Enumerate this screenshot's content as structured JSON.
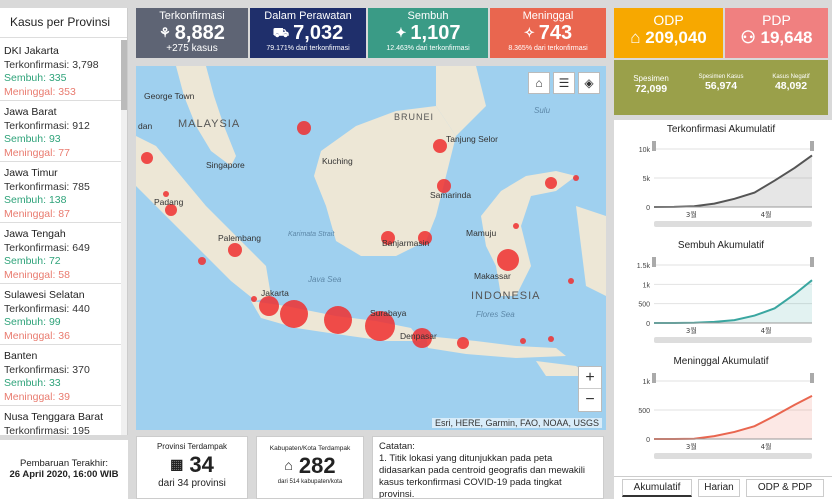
{
  "sidebar": {
    "title": "Kasus per Provinsi",
    "provinces": [
      {
        "name": "DKI Jakarta",
        "konf": "Terkonfirmasi: 3,798",
        "semb": "Sembuh: 335",
        "men": "Meninggal: 353"
      },
      {
        "name": "Jawa Barat",
        "konf": "Terkonfirmasi: 912",
        "semb": "Sembuh: 93",
        "men": "Meninggal: 77"
      },
      {
        "name": "Jawa Timur",
        "konf": "Terkonfirmasi: 785",
        "semb": "Sembuh: 138",
        "men": "Meninggal: 87"
      },
      {
        "name": "Jawa Tengah",
        "konf": "Terkonfirmasi: 649",
        "semb": "Sembuh: 72",
        "men": "Meninggal: 58"
      },
      {
        "name": "Sulawesi Selatan",
        "konf": "Terkonfirmasi: 440",
        "semb": "Sembuh: 99",
        "men": "Meninggal: 36"
      },
      {
        "name": "Banten",
        "konf": "Terkonfirmasi: 370",
        "semb": "Sembuh: 33",
        "men": "Meninggal: 39"
      },
      {
        "name": "Nusa Tenggara Barat",
        "konf": "Terkonfirmasi: 195",
        "semb": "",
        "men": ""
      }
    ]
  },
  "update": {
    "label": "Pembaruan Terakhir:",
    "date": "26 April 2020, 16:00 WIB"
  },
  "stats": {
    "konf": {
      "label": "Terkonfirmasi",
      "value": "8,882",
      "sub": "+275 kasus"
    },
    "raw": {
      "label": "Dalam Perawatan",
      "value": "7,032",
      "sub": "79.171% dari terkonfirmasi"
    },
    "semb": {
      "label": "Sembuh",
      "value": "1,107",
      "sub": "12.463% dari terkonfirmasi"
    },
    "men": {
      "label": "Meninggal",
      "value": "743",
      "sub": "8.365% dari terkonfirmasi"
    }
  },
  "odp": {
    "label": "ODP",
    "value": "209,040"
  },
  "pdp": {
    "label": "PDP",
    "value": "19,648"
  },
  "spesimen": [
    {
      "label": "Spesimen",
      "value": "72,099"
    },
    {
      "label": "Spesimen Kasus",
      "value": "56,974"
    },
    {
      "label": "Kasus Negatif",
      "value": "48,092"
    }
  ],
  "map": {
    "labels": {
      "malaysia": "MALAYSIA",
      "brunei": "BRUNEI",
      "indonesia": "INDONESIA",
      "georgetown": "George Town",
      "singapore": "Singapore",
      "padang": "Padang",
      "palembang": "Palembang",
      "jakarta": "Jakarta",
      "surabaya": "Surabaya",
      "denpasar": "Denpasar",
      "kuching": "Kuching",
      "samarinda": "Samarinda",
      "banjarmasin": "Banjarmasin",
      "mamuju": "Mamuju",
      "makassar": "Makassar",
      "tanjung": "Tanjung Selor",
      "java_sea": "Java Sea",
      "flores": "Flores Sea",
      "karimata": "Karimata Strait",
      "dan": "dan",
      "sulu": "Sulu"
    },
    "attribution": "Esri, HERE, Garmin, FAO, NOAA, USGS",
    "zoom_in": "+",
    "zoom_out": "−"
  },
  "boxes": {
    "prov": {
      "label": "Provinsi Terdampak",
      "value": "34",
      "sub": "dari 34 provinsi"
    },
    "kab": {
      "label": "Kabupaten/Kota Terdampak",
      "value": "282",
      "sub": "dari 514 kabupaten/kota"
    }
  },
  "catatan": {
    "title": "Catatan:",
    "text": "1. Titik lokasi yang ditunjukkan pada peta didasarkan pada centroid geografis dan mewakili kasus terkonfirmasi COVID-19 pada tingkat provinsi."
  },
  "chart_data": [
    {
      "type": "area",
      "title": "Terkonfirmasi Akumulatif",
      "ytick_labels": [
        "10k",
        "5k",
        "0"
      ],
      "xtick_labels": [
        "3월",
        "4월"
      ],
      "ylim": [
        0,
        10000
      ],
      "x": [
        "2020-03-02",
        "2020-03-09",
        "2020-03-16",
        "2020-03-23",
        "2020-03-30",
        "2020-04-06",
        "2020-04-13",
        "2020-04-20",
        "2020-04-26"
      ],
      "values": [
        2,
        19,
        134,
        579,
        1414,
        2491,
        4557,
        6760,
        8882
      ],
      "color": "#555555"
    },
    {
      "type": "area",
      "title": "Sembuh Akumulatif",
      "ytick_labels": [
        "1.5k",
        "1k",
        "500",
        "0"
      ],
      "xtick_labels": [
        "3월",
        "4월"
      ],
      "ylim": [
        0,
        1500
      ],
      "x": [
        "2020-03-02",
        "2020-03-09",
        "2020-03-16",
        "2020-03-23",
        "2020-03-30",
        "2020-04-06",
        "2020-04-13",
        "2020-04-20",
        "2020-04-26"
      ],
      "values": [
        0,
        0,
        8,
        30,
        75,
        192,
        380,
        747,
        1107
      ],
      "color": "#3aa6a0"
    },
    {
      "type": "area",
      "title": "Meninggal Akumulatif",
      "ytick_labels": [
        "1k",
        "500",
        "0"
      ],
      "xtick_labels": [
        "3월",
        "4월"
      ],
      "ylim": [
        0,
        1000
      ],
      "x": [
        "2020-03-02",
        "2020-03-09",
        "2020-03-16",
        "2020-03-23",
        "2020-03-30",
        "2020-04-06",
        "2020-04-13",
        "2020-04-20",
        "2020-04-26"
      ],
      "values": [
        0,
        0,
        5,
        49,
        122,
        221,
        399,
        590,
        743
      ],
      "color": "#e9664f"
    }
  ],
  "tabs": [
    "Akumulatif",
    "Harian",
    "ODP & PDP"
  ]
}
